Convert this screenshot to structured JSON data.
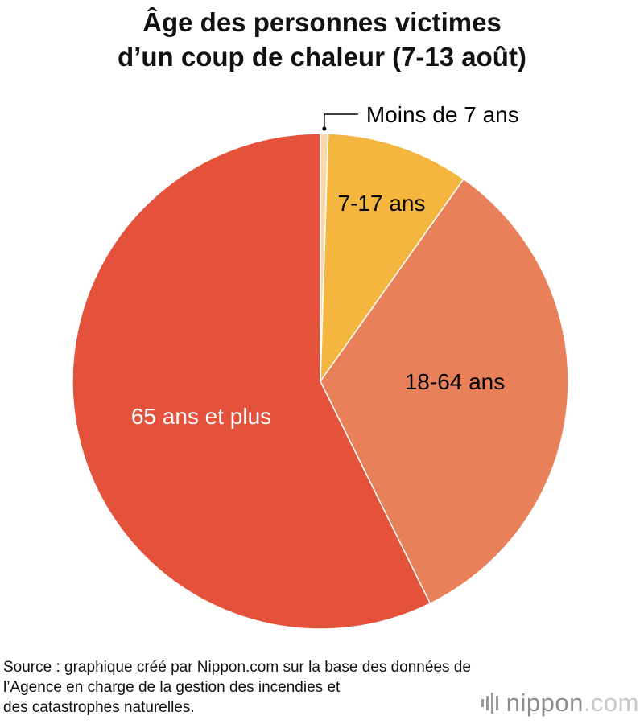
{
  "title": {
    "line1": "Âge des personnes victimes",
    "line2": "d’un coup de chaleur (7-13 août)"
  },
  "chart_data": {
    "type": "pie",
    "title": "Âge des personnes victimes d’un coup de chaleur (7-13 août)",
    "slices": [
      {
        "label": "Moins de 7 ans",
        "value": 0.5,
        "color": "#f8d8a8",
        "label_color": "#000000"
      },
      {
        "label": "7-17 ans",
        "value": 9.3,
        "color": "#f4b63f",
        "label_color": "#000000"
      },
      {
        "label": "18-64 ans",
        "value": 32.9,
        "color": "#e8805a",
        "label_color": "#000000"
      },
      {
        "label": "65 ans et plus",
        "value": 57.3,
        "color": "#e4523b",
        "label_color": "#ffffff"
      }
    ],
    "start_angle": "12 o'clock, clockwise",
    "legend": "none (labels on slices)"
  },
  "source": {
    "line1": "Source : graphique créé par Nippon.com sur la base des données de",
    "line2": "l’Agence en charge de la gestion des incendies et",
    "line3": "des catastrophes naturelles."
  },
  "logo": {
    "name": "nippon",
    "tld": ".com"
  }
}
